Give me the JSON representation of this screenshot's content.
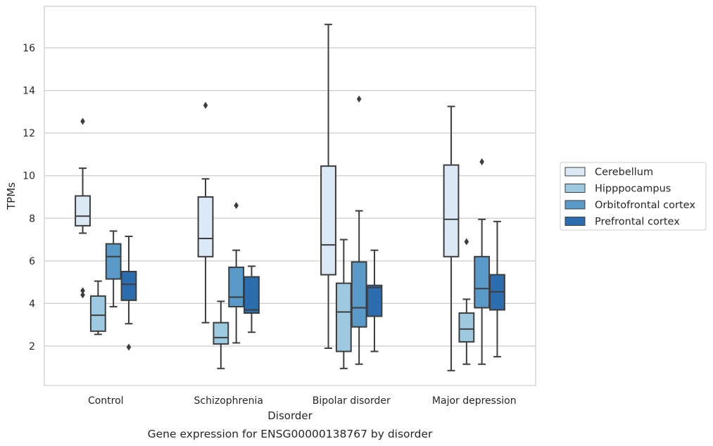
{
  "chart_data": {
    "type": "box",
    "caption": "Gene expression for ENSG00000138767 by disorder",
    "xlabel": "Disorder",
    "ylabel": "TPMs",
    "ylim": [
      0.15,
      17.95
    ],
    "yticks": [
      2,
      4,
      6,
      8,
      10,
      12,
      14,
      16
    ],
    "grid": "horizontal",
    "legend_position": "right",
    "categories": [
      "Control",
      "Schizophrenia",
      "Bipolar disorder",
      "Major depression"
    ],
    "series": [
      {
        "name": "Cerebellum",
        "color": "#dbe9f6",
        "boxes": [
          {
            "whislo": 7.3,
            "q1": 7.65,
            "med": 8.1,
            "q3": 9.05,
            "whishi": 10.35,
            "fliers": [
              12.55,
              4.6,
              4.4
            ]
          },
          {
            "whislo": 3.1,
            "q1": 6.2,
            "med": 7.05,
            "q3": 9.0,
            "whishi": 9.85,
            "fliers": [
              13.3
            ]
          },
          {
            "whislo": 1.9,
            "q1": 5.35,
            "med": 6.75,
            "q3": 10.45,
            "whishi": 17.1,
            "fliers": []
          },
          {
            "whislo": 0.85,
            "q1": 6.2,
            "med": 7.95,
            "q3": 10.5,
            "whishi": 13.25,
            "fliers": []
          }
        ]
      },
      {
        "name": "Hipppocampus",
        "color": "#9ecae1",
        "boxes": [
          {
            "whislo": 2.55,
            "q1": 2.7,
            "med": 3.45,
            "q3": 4.35,
            "whishi": 5.05,
            "fliers": []
          },
          {
            "whislo": 0.95,
            "q1": 2.1,
            "med": 2.4,
            "q3": 3.1,
            "whishi": 4.1,
            "fliers": []
          },
          {
            "whislo": 0.95,
            "q1": 1.75,
            "med": 3.6,
            "q3": 4.95,
            "whishi": 7.0,
            "fliers": []
          },
          {
            "whislo": 1.15,
            "q1": 2.2,
            "med": 2.8,
            "q3": 3.55,
            "whishi": 4.2,
            "fliers": [
              6.9
            ]
          }
        ]
      },
      {
        "name": "Orbitofrontal cortex",
        "color": "#5a9ac9",
        "boxes": [
          {
            "whislo": 3.85,
            "q1": 5.15,
            "med": 6.2,
            "q3": 6.8,
            "whishi": 7.4,
            "fliers": []
          },
          {
            "whislo": 2.15,
            "q1": 3.85,
            "med": 4.3,
            "q3": 5.7,
            "whishi": 6.5,
            "fliers": [
              8.6
            ]
          },
          {
            "whislo": 1.15,
            "q1": 2.9,
            "med": 3.8,
            "q3": 5.95,
            "whishi": 8.35,
            "fliers": [
              13.6
            ]
          },
          {
            "whislo": 1.15,
            "q1": 3.8,
            "med": 4.7,
            "q3": 6.2,
            "whishi": 7.95,
            "fliers": [
              10.65
            ]
          }
        ]
      },
      {
        "name": "Prefrontal cortex",
        "color": "#2b6daf",
        "boxes": [
          {
            "whislo": 3.05,
            "q1": 4.15,
            "med": 4.9,
            "q3": 5.5,
            "whishi": 7.15,
            "fliers": [
              1.95
            ]
          },
          {
            "whislo": 2.65,
            "q1": 3.55,
            "med": 3.7,
            "q3": 5.25,
            "whishi": 5.75,
            "fliers": []
          },
          {
            "whislo": 1.75,
            "q1": 3.4,
            "med": 4.75,
            "q3": 4.85,
            "whishi": 6.5,
            "fliers": []
          },
          {
            "whislo": 1.5,
            "q1": 3.7,
            "med": 4.55,
            "q3": 5.35,
            "whishi": 7.85,
            "fliers": []
          }
        ]
      }
    ]
  }
}
